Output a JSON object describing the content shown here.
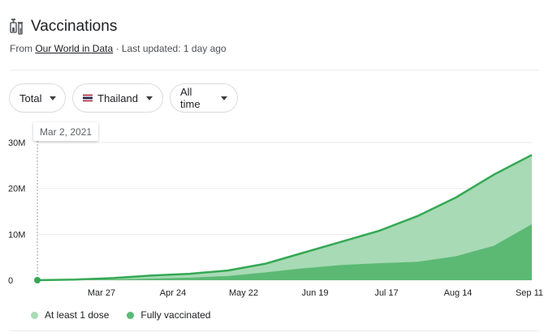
{
  "header": {
    "title": "Vaccinations",
    "source_prefix": "From ",
    "source_link": "Our World in Data",
    "source_suffix": " · Last updated: 1 day ago"
  },
  "filters": {
    "metric": "Total",
    "country": "Thailand",
    "range": "All time"
  },
  "tooltip": {
    "date": "Mar 2, 2021"
  },
  "legend": {
    "dose1": "At least 1 dose",
    "full": "Fully vaccinated"
  },
  "colors": {
    "dose1_fill": "#a8dab5",
    "dose1_line": "#34a853",
    "full_fill": "#5bb974",
    "grid": "#ebebeb"
  },
  "chart_data": {
    "type": "area",
    "y_ticks": [
      "0",
      "10M",
      "20M",
      "30M"
    ],
    "x_ticks": [
      "Mar 27",
      "Apr 24",
      "May 22",
      "Jun 19",
      "Jul 17",
      "Aug 14",
      "Sep 11"
    ],
    "ylim": [
      0,
      30000000
    ],
    "x": [
      "Mar 2",
      "Mar 27",
      "Apr 10",
      "Apr 24",
      "May 8",
      "May 22",
      "Jun 5",
      "Jun 19",
      "Jul 3",
      "Jul 17",
      "Jul 31",
      "Aug 14",
      "Aug 28",
      "Sep 11"
    ],
    "series": [
      {
        "name": "At least 1 dose",
        "values": [
          0,
          120000,
          450000,
          1000000,
          1400000,
          2100000,
          3600000,
          6000000,
          8400000,
          10800000,
          14000000,
          18000000,
          23000000,
          27300000
        ]
      },
      {
        "name": "Fully vaccinated",
        "values": [
          0,
          40000,
          150000,
          350000,
          550000,
          900000,
          1700000,
          2600000,
          3300000,
          3700000,
          4000000,
          5200000,
          7500000,
          12200000
        ]
      }
    ]
  }
}
